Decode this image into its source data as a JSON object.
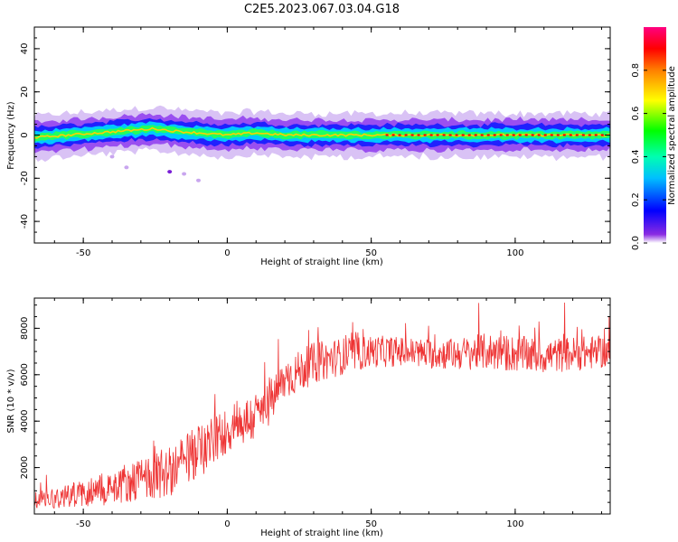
{
  "title": "C2E5.2023.067.03.04.G18",
  "chart_data": [
    {
      "type": "heatmap",
      "title": "C2E5.2023.067.03.04.G18",
      "xlabel": "Height of straight line (km)",
      "ylabel": "Frequency (Hz)",
      "xlim": [
        -67,
        133
      ],
      "ylim": [
        -50,
        50
      ],
      "xticks": [
        -50,
        0,
        50,
        100
      ],
      "yticks": [
        -40,
        -20,
        0,
        20,
        40
      ],
      "colorbar": {
        "label": "Normalized spectral amplitude",
        "ticks": [
          0.0,
          0.2,
          0.4,
          0.6,
          0.8
        ],
        "range": [
          0,
          1
        ],
        "colormap": "rainbow"
      },
      "ridge": {
        "description": "Frequency of spectral peak vs height",
        "x": [
          -65,
          -55,
          -45,
          -35,
          -25,
          -20,
          -10,
          0,
          10,
          20,
          30,
          40,
          50,
          60,
          70,
          80,
          90,
          100,
          110,
          120,
          130
        ],
        "y": [
          -1,
          0,
          1,
          2,
          3,
          2,
          1,
          0,
          1,
          0,
          0,
          0,
          0,
          0,
          0,
          0,
          0,
          0,
          0,
          0,
          0
        ],
        "halfwidth": 5
      },
      "outliers": {
        "x": [
          -40,
          -35,
          -20,
          -15,
          -10
        ],
        "y": [
          -10,
          -15,
          -17,
          -18,
          -21
        ]
      }
    },
    {
      "type": "line",
      "xlabel": "Height of straight line (km)",
      "ylabel": "SNR (10 * v/v)",
      "xlim": [
        -67,
        133
      ],
      "ylim": [
        0,
        9300
      ],
      "xticks": [
        -50,
        0,
        50,
        100
      ],
      "yticks": [
        2000,
        4000,
        6000,
        8000
      ],
      "color": "#ee3333",
      "trend": {
        "x": [
          -67,
          -50,
          -40,
          -30,
          -20,
          -10,
          0,
          10,
          15,
          20,
          30,
          40,
          50,
          60,
          70,
          80,
          90,
          100,
          110,
          120,
          133
        ],
        "y": [
          600,
          900,
          1200,
          1500,
          1800,
          2700,
          3600,
          4200,
          4800,
          5800,
          6500,
          6800,
          7000,
          7000,
          6900,
          6900,
          7000,
          6900,
          6800,
          6900,
          7000
        ]
      },
      "noise_amplitude": [
        400,
        600,
        800,
        900,
        1100,
        1200,
        1000,
        1100,
        1000,
        900,
        900,
        800,
        700,
        650,
        650,
        700,
        800,
        800,
        750,
        750,
        700
      ]
    }
  ]
}
